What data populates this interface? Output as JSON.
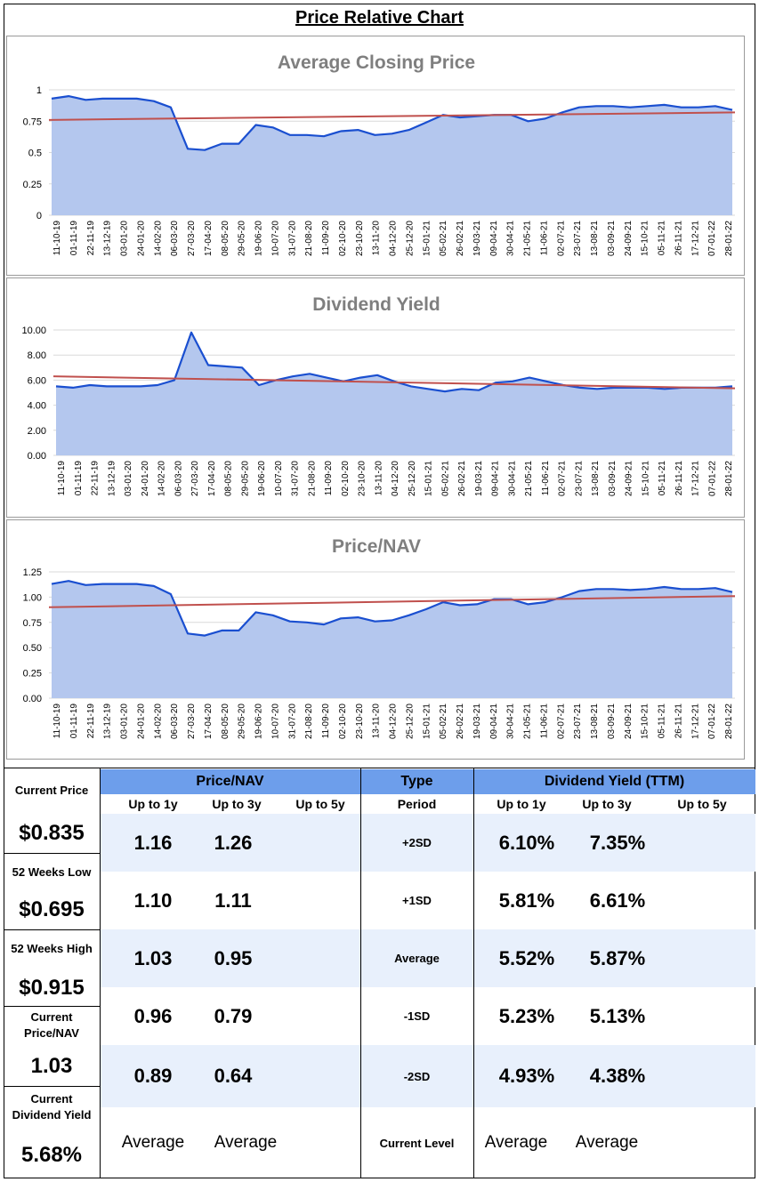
{
  "page_title": "Price Relative Chart",
  "chart_data": [
    {
      "type": "area",
      "title": "Average Closing Price",
      "ylim": [
        0,
        1
      ],
      "y_ticks": [
        "0",
        "0.25",
        "0.5",
        "0.75",
        "1"
      ],
      "y_tick_values": [
        0,
        0.25,
        0.5,
        0.75,
        1
      ],
      "x_ticks": [
        "11-10-19",
        "01-11-19",
        "22-11-19",
        "13-12-19",
        "03-01-20",
        "24-01-20",
        "14-02-20",
        "06-03-20",
        "27-03-20",
        "17-04-20",
        "08-05-20",
        "29-05-20",
        "19-06-20",
        "10-07-20",
        "31-07-20",
        "21-08-20",
        "11-09-20",
        "02-10-20",
        "23-10-20",
        "13-11-20",
        "04-12-20",
        "25-12-20",
        "15-01-21",
        "05-02-21",
        "26-02-21",
        "19-03-21",
        "09-04-21",
        "30-04-21",
        "21-05-21",
        "11-06-21",
        "02-07-21",
        "23-07-21",
        "13-08-21",
        "03-09-21",
        "24-09-21",
        "15-10-21",
        "05-11-21",
        "26-11-21",
        "17-12-21",
        "07-01-22",
        "28-01-22"
      ],
      "series": [
        {
          "name": "Average Closing Price",
          "values": [
            0.93,
            0.95,
            0.92,
            0.93,
            0.93,
            0.93,
            0.91,
            0.86,
            0.53,
            0.52,
            0.57,
            0.57,
            0.72,
            0.7,
            0.64,
            0.64,
            0.63,
            0.67,
            0.68,
            0.64,
            0.65,
            0.68,
            0.74,
            0.8,
            0.78,
            0.79,
            0.8,
            0.8,
            0.75,
            0.77,
            0.82,
            0.86,
            0.87,
            0.87,
            0.86,
            0.87,
            0.88,
            0.86,
            0.86,
            0.87,
            0.84
          ]
        }
      ],
      "trend": [
        0.76,
        0.82
      ],
      "grid": true
    },
    {
      "type": "area",
      "title": "Dividend Yield",
      "ylim": [
        0,
        10
      ],
      "y_ticks": [
        "0.00",
        "2.00",
        "4.00",
        "6.00",
        "8.00",
        "10.00"
      ],
      "y_tick_values": [
        0,
        2,
        4,
        6,
        8,
        10
      ],
      "x_ticks": [
        "11-10-19",
        "01-11-19",
        "22-11-19",
        "13-12-19",
        "03-01-20",
        "24-01-20",
        "14-02-20",
        "06-03-20",
        "27-03-20",
        "17-04-20",
        "08-05-20",
        "29-05-20",
        "19-06-20",
        "10-07-20",
        "31-07-20",
        "21-08-20",
        "11-09-20",
        "02-10-20",
        "23-10-20",
        "13-11-20",
        "04-12-20",
        "25-12-20",
        "15-01-21",
        "05-02-21",
        "26-02-21",
        "19-03-21",
        "09-04-21",
        "30-04-21",
        "21-05-21",
        "11-06-21",
        "02-07-21",
        "23-07-21",
        "13-08-21",
        "03-09-21",
        "24-09-21",
        "15-10-21",
        "05-11-21",
        "26-11-21",
        "17-12-21",
        "07-01-22",
        "28-01-22"
      ],
      "series": [
        {
          "name": "Dividend Yield",
          "values": [
            5.5,
            5.4,
            5.6,
            5.5,
            5.5,
            5.5,
            5.6,
            6.0,
            9.8,
            7.2,
            7.1,
            7.0,
            5.6,
            6.0,
            6.3,
            6.5,
            6.2,
            5.9,
            6.2,
            6.4,
            5.9,
            5.5,
            5.3,
            5.1,
            5.3,
            5.2,
            5.8,
            5.9,
            6.2,
            5.9,
            5.6,
            5.4,
            5.3,
            5.4,
            5.4,
            5.4,
            5.3,
            5.4,
            5.4,
            5.4,
            5.5
          ]
        }
      ],
      "trend": [
        6.3,
        5.35
      ],
      "grid": true
    },
    {
      "type": "area",
      "title": "Price/NAV",
      "ylim": [
        0,
        1.25
      ],
      "y_ticks": [
        "0.00",
        "0.25",
        "0.50",
        "0.75",
        "1.00",
        "1.25"
      ],
      "y_tick_values": [
        0,
        0.25,
        0.5,
        0.75,
        1,
        1.25
      ],
      "x_ticks": [
        "11-10-19",
        "01-11-19",
        "22-11-19",
        "13-12-19",
        "03-01-20",
        "24-01-20",
        "14-02-20",
        "06-03-20",
        "27-03-20",
        "17-04-20",
        "08-05-20",
        "29-05-20",
        "19-06-20",
        "10-07-20",
        "31-07-20",
        "21-08-20",
        "11-09-20",
        "02-10-20",
        "23-10-20",
        "13-11-20",
        "04-12-20",
        "25-12-20",
        "15-01-21",
        "05-02-21",
        "26-02-21",
        "19-03-21",
        "09-04-21",
        "30-04-21",
        "21-05-21",
        "11-06-21",
        "02-07-21",
        "23-07-21",
        "13-08-21",
        "03-09-21",
        "24-09-21",
        "15-10-21",
        "05-11-21",
        "26-11-21",
        "17-12-21",
        "07-01-22",
        "28-01-22"
      ],
      "series": [
        {
          "name": "Price/NAV",
          "values": [
            1.13,
            1.16,
            1.12,
            1.13,
            1.13,
            1.13,
            1.11,
            1.03,
            0.64,
            0.62,
            0.67,
            0.67,
            0.85,
            0.82,
            0.76,
            0.75,
            0.73,
            0.79,
            0.8,
            0.76,
            0.77,
            0.82,
            0.88,
            0.95,
            0.92,
            0.93,
            0.98,
            0.98,
            0.93,
            0.95,
            1.0,
            1.06,
            1.08,
            1.08,
            1.07,
            1.08,
            1.1,
            1.08,
            1.08,
            1.09,
            1.05
          ]
        }
      ],
      "trend": [
        0.9,
        1.01
      ],
      "grid": true
    }
  ],
  "colors": {
    "area_fill": "#b4c7ee",
    "line": "#1a4fd0",
    "trend": "#c0504d",
    "header_bg": "#6d9eeb",
    "band_bg": "#e8f0fc"
  },
  "table": {
    "left": [
      {
        "label": "Current Price",
        "value": "$0.835"
      },
      {
        "label": "52 Weeks Low",
        "value": "$0.695"
      },
      {
        "label": "52 Weeks High",
        "value": "$0.915"
      },
      {
        "label": "Current Price/NAV",
        "value": "1.03"
      },
      {
        "label": "Current Dividend Yield",
        "value": "5.68%"
      }
    ],
    "pnav_header": "Price/NAV",
    "type_header": "Type",
    "dy_header": "Dividend Yield (TTM)",
    "sub": {
      "up1": "Up to 1y",
      "up3": "Up to 3y",
      "up5": "Up to 5y",
      "period": "Period"
    },
    "rows": [
      {
        "type": "+2SD",
        "p1": "1.16",
        "p3": "1.26",
        "d1": "6.10%",
        "d3": "7.35%"
      },
      {
        "type": "+1SD",
        "p1": "1.10",
        "p3": "1.11",
        "d1": "5.81%",
        "d3": "6.61%"
      },
      {
        "type": "Average",
        "p1": "1.03",
        "p3": "0.95",
        "d1": "5.52%",
        "d3": "5.87%"
      },
      {
        "type": "-1SD",
        "p1": "0.96",
        "p3": "0.79",
        "d1": "5.23%",
        "d3": "5.13%"
      },
      {
        "type": "-2SD",
        "p1": "0.89",
        "p3": "0.64",
        "d1": "4.93%",
        "d3": "4.38%"
      }
    ],
    "current_level": {
      "type": "Current Level",
      "p1": "Average",
      "p3": "Average",
      "d1": "Average",
      "d3": "Average"
    }
  }
}
